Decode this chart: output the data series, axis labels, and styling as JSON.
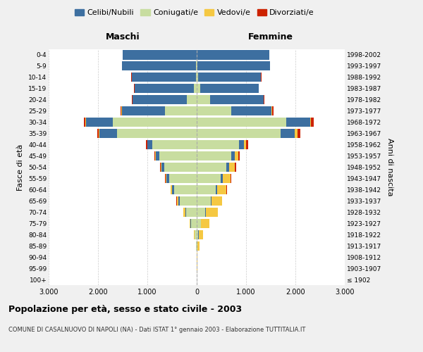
{
  "age_groups": [
    "100+",
    "95-99",
    "90-94",
    "85-89",
    "80-84",
    "75-79",
    "70-74",
    "65-69",
    "60-64",
    "55-59",
    "50-54",
    "45-49",
    "40-44",
    "35-39",
    "30-34",
    "25-29",
    "20-24",
    "15-19",
    "10-14",
    "5-9",
    "0-4"
  ],
  "birth_years": [
    "≤ 1902",
    "1903-1907",
    "1908-1912",
    "1913-1917",
    "1918-1922",
    "1923-1927",
    "1928-1932",
    "1933-1937",
    "1938-1942",
    "1943-1947",
    "1948-1952",
    "1953-1957",
    "1958-1962",
    "1963-1967",
    "1968-1972",
    "1973-1977",
    "1978-1982",
    "1983-1987",
    "1988-1992",
    "1993-1997",
    "1998-2002"
  ],
  "male_celibi": [
    0,
    0,
    2,
    4,
    8,
    12,
    18,
    28,
    38,
    50,
    60,
    70,
    100,
    350,
    550,
    870,
    1100,
    1200,
    1300,
    1500,
    1500
  ],
  "male_coniugati": [
    0,
    0,
    3,
    10,
    40,
    110,
    210,
    340,
    460,
    560,
    660,
    760,
    900,
    1620,
    1700,
    650,
    200,
    60,
    20,
    10,
    5
  ],
  "male_vedovi": [
    0,
    0,
    1,
    3,
    12,
    25,
    45,
    35,
    25,
    18,
    12,
    8,
    5,
    15,
    8,
    4,
    2,
    1,
    0,
    0,
    0
  ],
  "male_divorziati": [
    0,
    0,
    0,
    1,
    2,
    3,
    5,
    8,
    12,
    15,
    18,
    22,
    28,
    35,
    25,
    15,
    8,
    4,
    2,
    1,
    0
  ],
  "female_celibi": [
    0,
    0,
    1,
    3,
    7,
    10,
    15,
    22,
    30,
    40,
    55,
    65,
    90,
    290,
    480,
    820,
    1080,
    1180,
    1280,
    1470,
    1460
  ],
  "female_coniugati": [
    0,
    0,
    2,
    8,
    30,
    80,
    170,
    280,
    390,
    490,
    600,
    700,
    860,
    1700,
    1820,
    700,
    270,
    70,
    25,
    12,
    5
  ],
  "female_vedovi": [
    3,
    8,
    18,
    45,
    90,
    160,
    240,
    210,
    185,
    155,
    115,
    80,
    50,
    50,
    20,
    12,
    6,
    3,
    1,
    0,
    0
  ],
  "female_divorziati": [
    0,
    0,
    0,
    1,
    2,
    3,
    5,
    8,
    12,
    18,
    28,
    20,
    40,
    55,
    50,
    28,
    18,
    10,
    4,
    2,
    0
  ],
  "colors": {
    "celibi": "#3d6fa0",
    "coniugati": "#c8dda0",
    "vedovi": "#f5c842",
    "divorziati": "#cc2200"
  },
  "legend_labels": [
    "Celibi/Nubili",
    "Coniugati/e",
    "Vedovi/e",
    "Divorziati/e"
  ],
  "title1": "Popolazione per età, sesso e stato civile - 2003",
  "title2": "COMUNE DI CASALNUOVO DI NAPOLI (NA) - Dati ISTAT 1° gennaio 2003 - Elaborazione TUTTITALIA.IT",
  "ylabel_left": "Fasce di età",
  "ylabel_right": "Anni di nascita",
  "label_maschi": "Maschi",
  "label_femmine": "Femmine",
  "xlim": 3000,
  "bg_color": "#f0f0f0",
  "plot_bg": "#ffffff"
}
